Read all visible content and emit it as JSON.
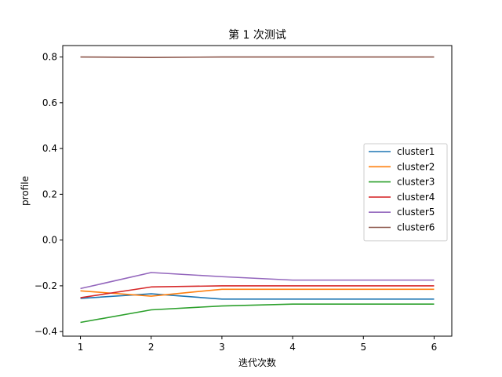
{
  "chart_data": {
    "type": "line",
    "title": "第 1 次测试",
    "xlabel": "迭代次数",
    "ylabel": "profile",
    "x": [
      1,
      2,
      3,
      4,
      5,
      6
    ],
    "xticks": [
      "1",
      "2",
      "3",
      "4",
      "5",
      "6"
    ],
    "yticks": [
      "−0.4",
      "−0.2",
      "0.0",
      "0.2",
      "0.4",
      "0.6",
      "0.8"
    ],
    "ylim": [
      -0.42,
      0.85
    ],
    "xlim": [
      0.75,
      6.25
    ],
    "grid": false,
    "legend_position": "center-right",
    "series": [
      {
        "name": "cluster1",
        "color": "#1f77b4",
        "values": [
          -0.255,
          -0.235,
          -0.258,
          -0.258,
          -0.258,
          -0.258
        ]
      },
      {
        "name": "cluster2",
        "color": "#ff7f0e",
        "values": [
          -0.222,
          -0.245,
          -0.215,
          -0.215,
          -0.215,
          -0.215
        ]
      },
      {
        "name": "cluster3",
        "color": "#2ca02c",
        "values": [
          -0.36,
          -0.305,
          -0.288,
          -0.28,
          -0.28,
          -0.28
        ]
      },
      {
        "name": "cluster4",
        "color": "#d62728",
        "values": [
          -0.252,
          -0.205,
          -0.2,
          -0.2,
          -0.2,
          -0.2
        ]
      },
      {
        "name": "cluster5",
        "color": "#9467bd",
        "values": [
          -0.212,
          -0.142,
          -0.16,
          -0.175,
          -0.175,
          -0.175
        ]
      },
      {
        "name": "cluster6",
        "color": "#8c564b",
        "values": [
          0.8,
          0.798,
          0.8,
          0.8,
          0.8,
          0.8
        ]
      }
    ]
  }
}
